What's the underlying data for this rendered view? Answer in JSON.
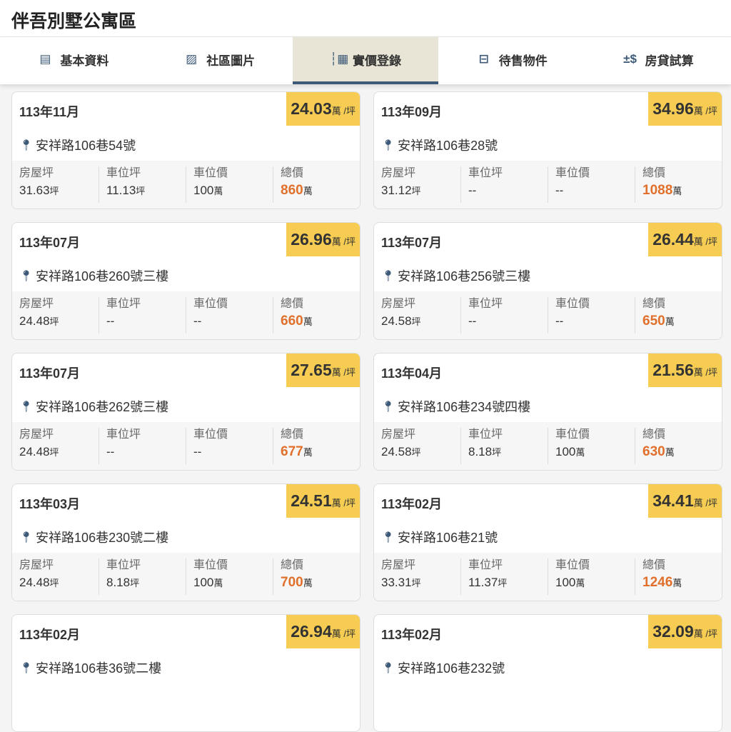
{
  "header": {
    "title": "伴吾別墅公寓區"
  },
  "tabs": [
    {
      "label": "基本資料",
      "icon": "document-icon",
      "glyph": "▤"
    },
    {
      "label": "社區圖片",
      "icon": "image-icon",
      "glyph": "▨"
    },
    {
      "label": "實價登錄",
      "icon": "list-chart-icon",
      "glyph": "┆▦",
      "active": true
    },
    {
      "label": "待售物件",
      "icon": "store-icon",
      "glyph": "⊟"
    },
    {
      "label": "房貸試算",
      "icon": "plus-minus-dollar-icon",
      "glyph": "±$"
    }
  ],
  "labels": {
    "house": "房屋坪",
    "parking_area": "車位坪",
    "parking_price": "車位價",
    "total": "總價",
    "unit_price": "萬 /坪",
    "ping": "坪",
    "wan": "萬"
  },
  "cards": [
    {
      "date": "113年11月",
      "price": "24.03",
      "address": "安祥路106巷54號",
      "house": "31.63",
      "parking_area": "11.13",
      "parking_price": "100",
      "total": "860"
    },
    {
      "date": "113年09月",
      "price": "34.96",
      "address": "安祥路106巷28號",
      "house": "31.12",
      "parking_area": "--",
      "parking_price": "--",
      "total": "1088"
    },
    {
      "date": "113年07月",
      "price": "26.96",
      "address": "安祥路106巷260號三樓",
      "house": "24.48",
      "parking_area": "--",
      "parking_price": "--",
      "total": "660"
    },
    {
      "date": "113年07月",
      "price": "26.44",
      "address": "安祥路106巷256號三樓",
      "house": "24.58",
      "parking_area": "--",
      "parking_price": "--",
      "total": "650"
    },
    {
      "date": "113年07月",
      "price": "27.65",
      "address": "安祥路106巷262號三樓",
      "house": "24.48",
      "parking_area": "--",
      "parking_price": "--",
      "total": "677"
    },
    {
      "date": "113年04月",
      "price": "21.56",
      "address": "安祥路106巷234號四樓",
      "house": "24.58",
      "parking_area": "8.18",
      "parking_price": "100",
      "total": "630"
    },
    {
      "date": "113年03月",
      "price": "24.51",
      "address": "安祥路106巷230號二樓",
      "house": "24.48",
      "parking_area": "8.18",
      "parking_price": "100",
      "total": "700"
    },
    {
      "date": "113年02月",
      "price": "34.41",
      "address": "安祥路106巷21號",
      "house": "33.31",
      "parking_area": "11.37",
      "parking_price": "100",
      "total": "1246"
    },
    {
      "date": "113年02月",
      "price": "26.94",
      "address": "安祥路106巷36號二樓"
    },
    {
      "date": "113年02月",
      "price": "32.09",
      "address": "安祥路106巷232號"
    }
  ]
}
